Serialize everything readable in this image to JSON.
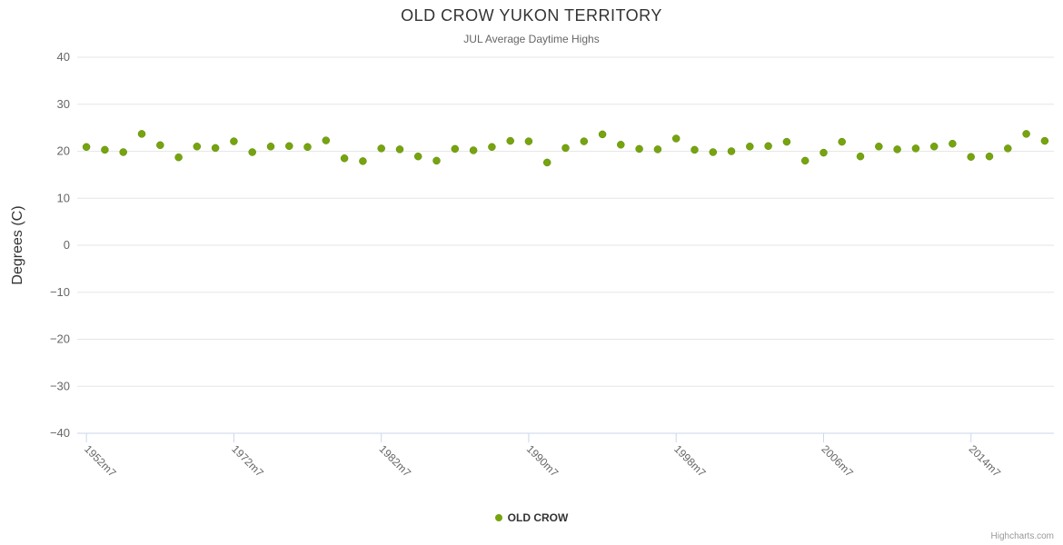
{
  "chart": {
    "title": "OLD CROW YUKON TERRITORY",
    "subtitle": "JUL Average Daytime Highs",
    "credits": "Highcharts.com"
  },
  "chart_data": {
    "type": "scatter",
    "title": "OLD CROW YUKON TERRITORY",
    "subtitle": "JUL Average Daytime Highs",
    "xlabel": "",
    "ylabel": "Degrees (C)",
    "ylim": [
      -40,
      40
    ],
    "y_ticks": [
      -40,
      -30,
      -20,
      -10,
      0,
      10,
      20,
      30,
      40
    ],
    "grid": true,
    "legend_position": "bottom",
    "marker_color": "#76a40e",
    "x_tick_labels": [
      "1952m7",
      "1972m7",
      "1982m7",
      "1990m7",
      "1998m7",
      "2006m7",
      "2014m7"
    ],
    "x_tick_indices": [
      0,
      8,
      16,
      24,
      32,
      40,
      48
    ],
    "series": [
      {
        "name": "OLD CROW",
        "color": "#76a40e",
        "values": [
          20.9,
          20.3,
          19.8,
          23.7,
          21.3,
          18.7,
          21.0,
          20.7,
          22.1,
          19.8,
          21.0,
          21.1,
          20.9,
          22.3,
          18.5,
          17.9,
          20.6,
          20.4,
          18.9,
          18.0,
          20.5,
          20.2,
          20.9,
          22.2,
          22.1,
          17.6,
          20.7,
          22.1,
          23.6,
          21.4,
          20.5,
          20.4,
          22.7,
          20.3,
          19.8,
          20.0,
          21.0,
          21.1,
          22.0,
          18.0,
          19.7,
          22.0,
          18.9,
          21.0,
          20.4,
          20.6,
          21.0,
          21.6,
          18.8,
          18.9,
          20.6,
          23.7,
          22.2
        ]
      }
    ]
  }
}
